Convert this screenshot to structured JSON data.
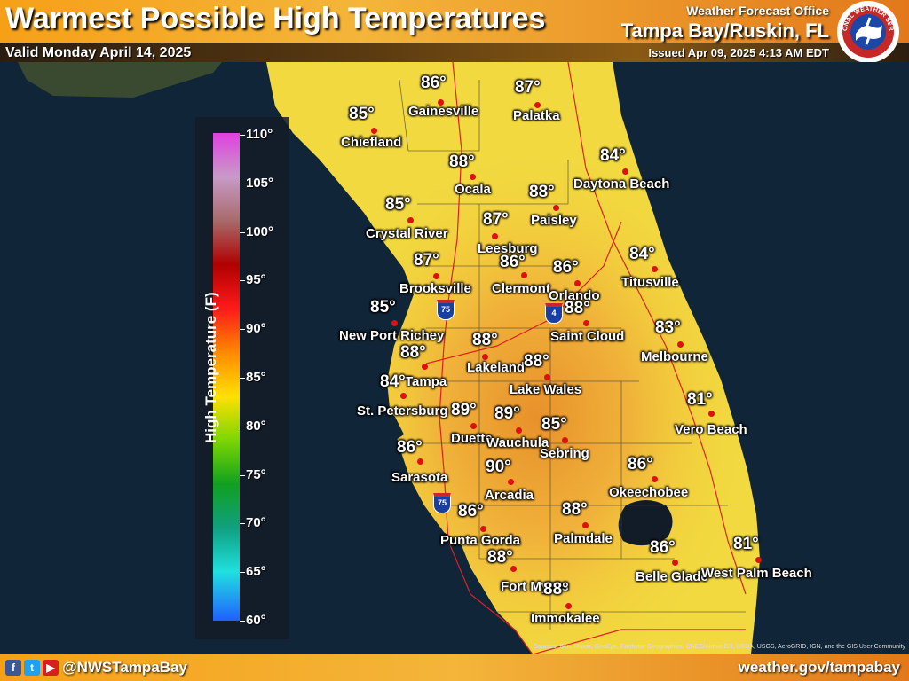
{
  "header": {
    "title": "Warmest Possible High Temperatures",
    "valid": "Valid Monday April 14, 2025",
    "office_line1": "Weather Forecast Office",
    "office_line2": "Tampa Bay/Ruskin, FL",
    "issued": "Issued Apr 09, 2025 4:13 AM EDT",
    "logo_text": "NATIONAL WEATHER SERVICE"
  },
  "legend": {
    "title": "High Temperature (F)",
    "ticks": [
      "110°",
      "105°",
      "100°",
      "95°",
      "90°",
      "85°",
      "80°",
      "75°",
      "70°",
      "65°",
      "60°"
    ]
  },
  "cities": [
    {
      "name": "Gainesville",
      "temp": "86°"
    },
    {
      "name": "Palatka",
      "temp": "87°"
    },
    {
      "name": "Chiefland",
      "temp": "85°"
    },
    {
      "name": "Ocala",
      "temp": "88°"
    },
    {
      "name": "Daytona Beach",
      "temp": "84°"
    },
    {
      "name": "Paisley",
      "temp": "88°"
    },
    {
      "name": "Crystal River",
      "temp": "85°"
    },
    {
      "name": "Leesburg",
      "temp": "87°"
    },
    {
      "name": "Brooksville",
      "temp": "87°"
    },
    {
      "name": "Clermont",
      "temp": "86°"
    },
    {
      "name": "Orlando",
      "temp": "86°"
    },
    {
      "name": "Titusville",
      "temp": "84°"
    },
    {
      "name": "New Port Richey",
      "temp": "85°"
    },
    {
      "name": "Saint Cloud",
      "temp": "88°"
    },
    {
      "name": "Melbourne",
      "temp": "83°"
    },
    {
      "name": "Lakeland",
      "temp": "88°"
    },
    {
      "name": "Tampa",
      "temp": "88°"
    },
    {
      "name": "St. Petersburg",
      "temp": "84°"
    },
    {
      "name": "Lake Wales",
      "temp": "88°"
    },
    {
      "name": "Vero Beach",
      "temp": "81°"
    },
    {
      "name": "Duette",
      "temp": "89°"
    },
    {
      "name": "Wauchula",
      "temp": "89°"
    },
    {
      "name": "Sebring",
      "temp": "85°"
    },
    {
      "name": "Sarasota",
      "temp": "86°"
    },
    {
      "name": "Arcadia",
      "temp": "90°"
    },
    {
      "name": "Okeechobee",
      "temp": "86°"
    },
    {
      "name": "Punta Gorda",
      "temp": "86°"
    },
    {
      "name": "Palmdale",
      "temp": "88°"
    },
    {
      "name": "Fort Myers",
      "temp": "88°"
    },
    {
      "name": "Belle Glade",
      "temp": "86°"
    },
    {
      "name": "West Palm Beach",
      "temp": "81°"
    },
    {
      "name": "Immokalee",
      "temp": "88°"
    }
  ],
  "shields": [
    "75",
    "4",
    "75"
  ],
  "footer": {
    "handle": "@NWSTampaBay",
    "url": "weather.gov/tampabay",
    "attribution": "Sources: Esri, Maxar, GeoEye, Earthstar Geographics, CNES/Airbus DS, USDA, USGS, AeroGRID, IGN, and the GIS User Community"
  }
}
